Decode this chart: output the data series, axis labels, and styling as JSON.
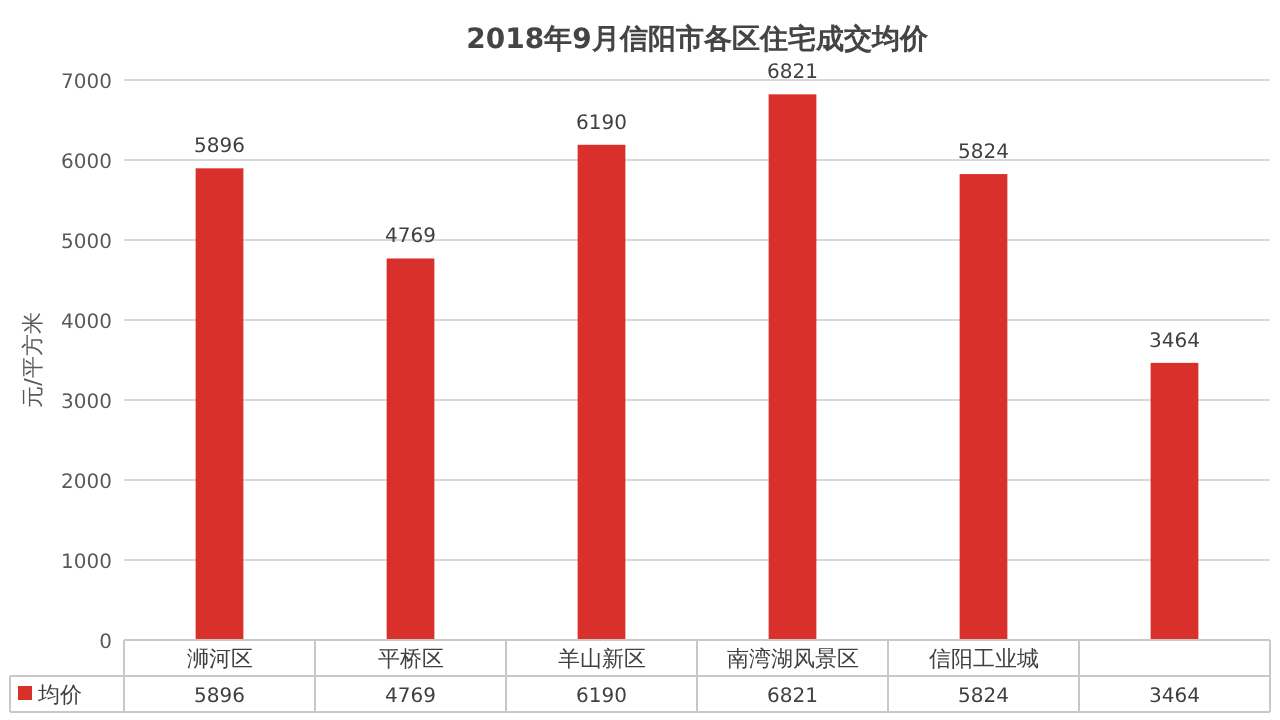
{
  "chart_data": {
    "type": "bar",
    "title": "2018年9月信阳市各区住宅成交均价",
    "ylabel": "元/平方米",
    "categories": [
      "浉河区",
      "平桥区",
      "羊山新区",
      "南湾湖风景区",
      "信阳工业城",
      null
    ],
    "series": [
      {
        "name": "均价",
        "color": "#d9302c",
        "values": [
          5896,
          4769,
          6190,
          6821,
          5824,
          3464
        ],
        "value_labels": [
          "5896",
          "4769",
          "6190",
          "6821",
          "5824",
          "3464"
        ]
      }
    ],
    "ylim": [
      0,
      7000
    ],
    "yticks": [
      0,
      1000,
      2000,
      3000,
      4000,
      5000,
      6000,
      7000
    ],
    "grid": "y",
    "annotations": [
      "5896",
      "4769",
      "6190",
      "6821",
      "5824",
      "3464"
    ],
    "legend": "bottom"
  }
}
